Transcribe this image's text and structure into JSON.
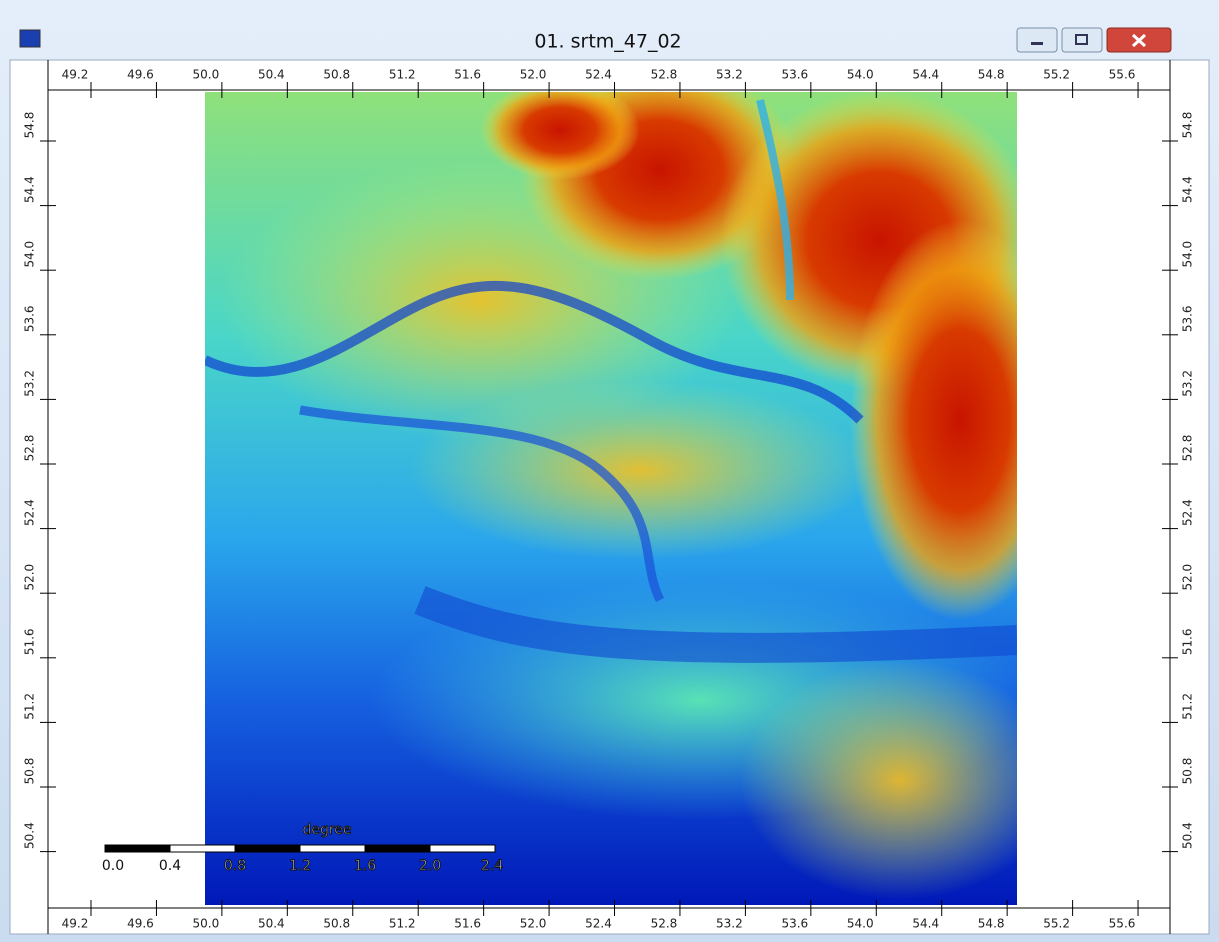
{
  "window": {
    "title": "01. srtm_47_02"
  },
  "map": {
    "x_ticks": [
      "49.2",
      "49.6",
      "50.0",
      "50.4",
      "50.8",
      "51.2",
      "51.6",
      "52.0",
      "52.4",
      "52.8",
      "53.2",
      "53.6",
      "54.0",
      "54.4",
      "54.8",
      "55.2",
      "55.6"
    ],
    "y_ticks": [
      "54.8",
      "54.4",
      "54.0",
      "53.6",
      "53.2",
      "52.8",
      "52.4",
      "52.0",
      "51.6",
      "51.2",
      "50.8",
      "50.4"
    ]
  },
  "scale_bar": {
    "unit": "degree",
    "ticks": [
      "0.0",
      "0.4",
      "0.8",
      "1.2",
      "1.6",
      "2.0",
      "2.4"
    ]
  }
}
